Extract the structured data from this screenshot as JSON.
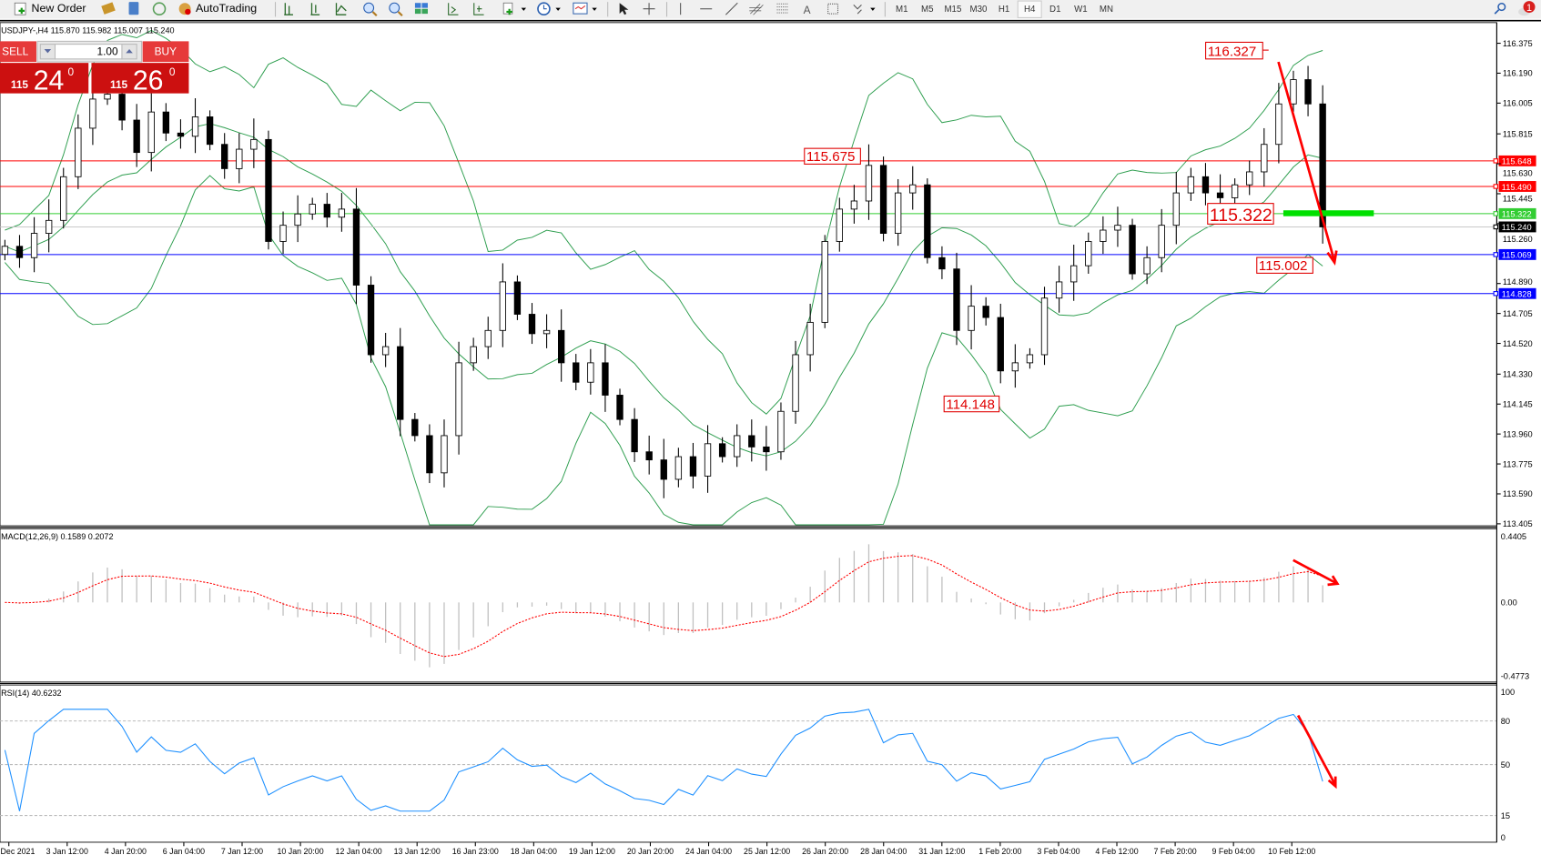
{
  "toolbar": {
    "new_order": "New Order",
    "autotrading": "AutoTrading",
    "timeframes": [
      "M1",
      "M5",
      "M15",
      "M30",
      "H1",
      "H4",
      "D1",
      "W1",
      "MN"
    ],
    "active_timeframe": "H4",
    "text_tool": "A",
    "notification_count": "1"
  },
  "chart": {
    "header": "USDJPY-,H4  115.870 115.982 115.007 115.240",
    "one_click": {
      "sell_label": "SELL",
      "buy_label": "BUY",
      "lot": "1.00",
      "sell_big": "115",
      "sell_pips": "24",
      "sell_sup": "0",
      "buy_big": "115",
      "buy_pips": "26",
      "buy_sup": "0"
    },
    "price_ticks": [
      "116.375",
      "116.190",
      "116.005",
      "115.815",
      "115.630",
      "115.445",
      "115.260",
      "114.890",
      "114.705",
      "114.520",
      "114.330",
      "114.145",
      "113.960",
      "113.775",
      "113.590",
      "113.405"
    ],
    "levels": [
      {
        "price": "115.648",
        "color": "#ff0000"
      },
      {
        "price": "115.490",
        "color": "#ff0000"
      },
      {
        "price": "115.322",
        "color": "#32cd32"
      },
      {
        "price": "115.240",
        "color": "#000000",
        "line": "#c0c0c0"
      },
      {
        "price": "115.069",
        "color": "#0000ff"
      },
      {
        "price": "114.828",
        "color": "#0000ff"
      }
    ],
    "annotations": [
      "116.327",
      "115.675",
      "115.322",
      "115.002",
      "114.148"
    ],
    "candle_closes": [
      115.12,
      115.05,
      115.2,
      115.28,
      115.55,
      115.85,
      116.03,
      116.06,
      115.9,
      115.7,
      115.95,
      115.82,
      115.8,
      115.92,
      115.75,
      115.6,
      115.72,
      115.78,
      115.15,
      115.25,
      115.32,
      115.38,
      115.3,
      115.35,
      114.88,
      114.45,
      114.5,
      114.05,
      113.95,
      113.72,
      113.95,
      114.4,
      114.5,
      114.6,
      114.9,
      114.7,
      114.58,
      114.6,
      114.4,
      114.28,
      114.4,
      114.2,
      114.05,
      113.85,
      113.8,
      113.68,
      113.82,
      113.7,
      113.9,
      113.82,
      113.95,
      113.88,
      113.85,
      114.1,
      114.45,
      114.65,
      115.15,
      115.35,
      115.4,
      115.62,
      115.2,
      115.45,
      115.5,
      115.05,
      114.98,
      114.6,
      114.75,
      114.68,
      114.35,
      114.4,
      114.45,
      114.8,
      114.9,
      115.0,
      115.15,
      115.22,
      115.25,
      114.95,
      115.05,
      115.25,
      115.45,
      115.55,
      115.45,
      115.42,
      115.5,
      115.58,
      115.75,
      116.0,
      116.15,
      116.0,
      115.24
    ],
    "price_range": [
      113.405,
      116.375
    ],
    "bands_color": "#2e9e4f",
    "arrow_color": "#ff0000"
  },
  "macd": {
    "label": "MACD(12,26,9) 0.1589 0.2072",
    "ticks": [
      "0.4405",
      "0.00",
      "-0.4773"
    ],
    "range": [
      -0.4773,
      0.4405
    ],
    "signal_color": "#ff0000",
    "hist_color": "#c0c0c0"
  },
  "rsi": {
    "label": "RSI(14) 40.6232",
    "ticks": [
      "100",
      "80",
      "50",
      "15",
      "0"
    ],
    "levels": [
      80,
      50,
      15
    ],
    "line_color": "#1e90ff"
  },
  "time_axis": [
    "Dec 2021",
    "3 Jan 12:00",
    "4 Jan 20:00",
    "6 Jan 04:00",
    "7 Jan 12:00",
    "10 Jan 20:00",
    "12 Jan 04:00",
    "13 Jan 12:00",
    "16 Jan 23:00",
    "18 Jan 04:00",
    "19 Jan 12:00",
    "20 Jan 20:00",
    "24 Jan 04:00",
    "25 Jan 12:00",
    "26 Jan 20:00",
    "28 Jan 04:00",
    "31 Jan 12:00",
    "1 Feb 20:00",
    "3 Feb 04:00",
    "4 Feb 12:00",
    "7 Feb 20:00",
    "9 Feb 04:00",
    "10 Feb 12:00"
  ]
}
